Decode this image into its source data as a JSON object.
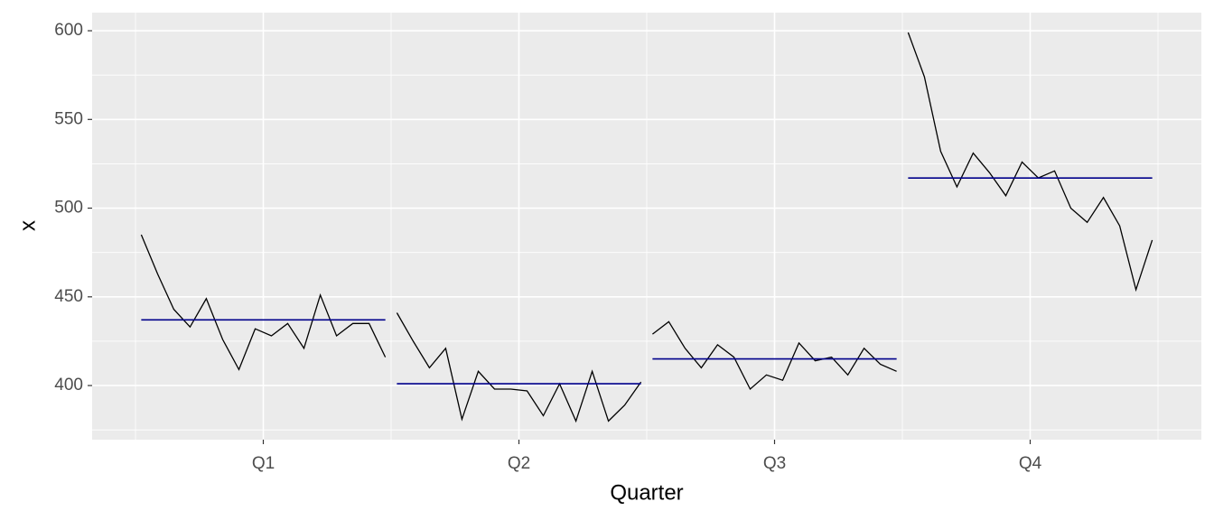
{
  "chart_data": {
    "type": "subseries",
    "x_label": "Quarter",
    "y_label": "x",
    "categories": [
      "Q1",
      "Q2",
      "Q3",
      "Q4"
    ],
    "values": [
      [
        485,
        463,
        443,
        433,
        449,
        426,
        409,
        432,
        428,
        435,
        421,
        451,
        428,
        435,
        435,
        416
      ],
      [
        441,
        425,
        410,
        421,
        381,
        408,
        398,
        398,
        397,
        383,
        401,
        380,
        408,
        380,
        389,
        402
      ],
      [
        429,
        436,
        421,
        410,
        423,
        416,
        398,
        406,
        403,
        424,
        414,
        416,
        406,
        421,
        412,
        408
      ],
      [
        599,
        574,
        532,
        512,
        531,
        520,
        507,
        526,
        517,
        521,
        500,
        492,
        506,
        490,
        454,
        482
      ]
    ],
    "means": [
      437,
      401,
      415,
      517
    ],
    "line_color": "#000000",
    "mean_color": "#00008b",
    "ylim": [
      369.5,
      610.2
    ],
    "yticks": [
      400,
      450,
      500,
      550,
      600
    ],
    "yminor": [
      375,
      425,
      475,
      525,
      575
    ],
    "grid": true
  }
}
